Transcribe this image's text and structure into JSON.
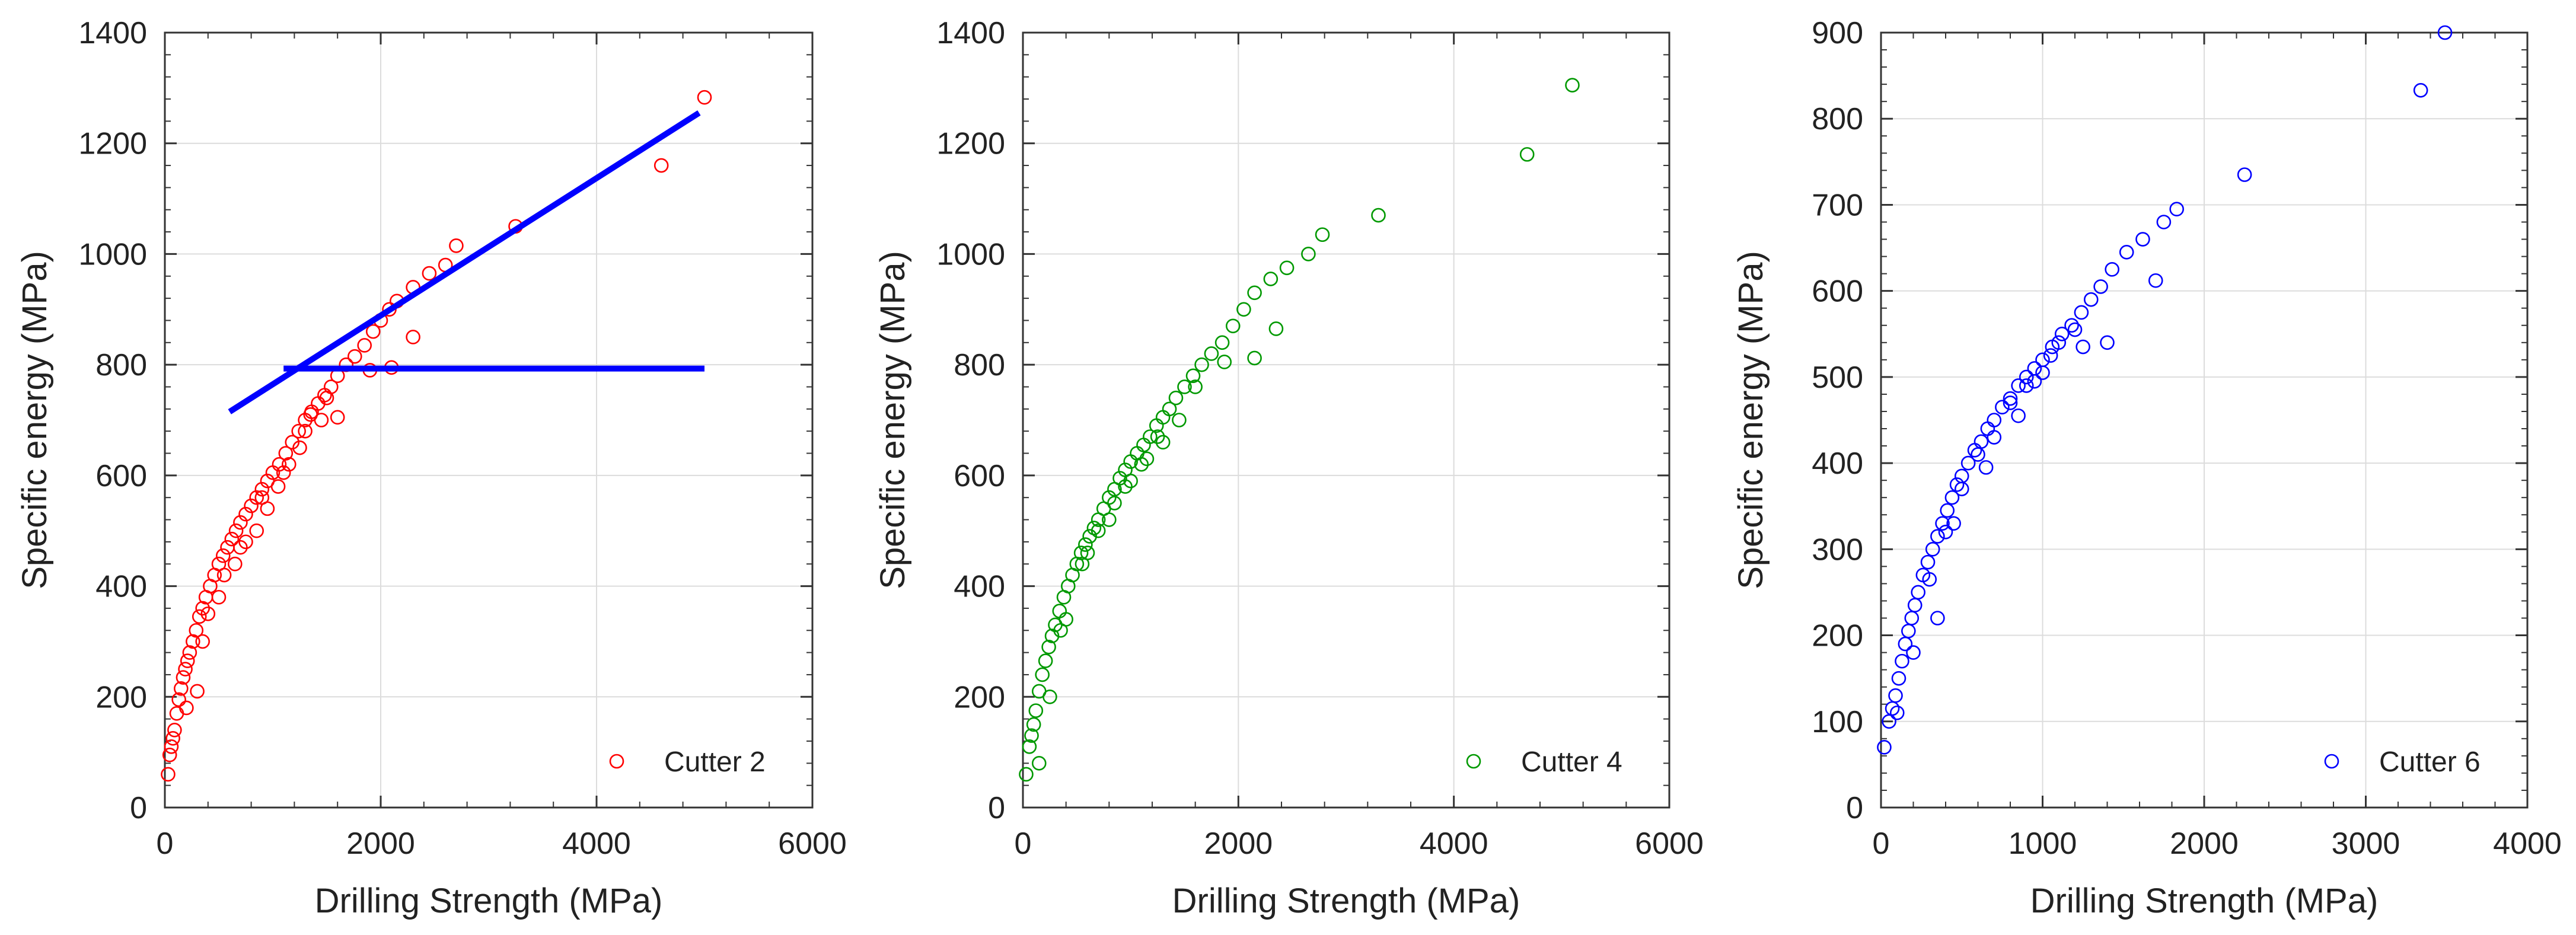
{
  "chart_data": [
    {
      "type": "scatter",
      "title": "",
      "xlabel": "Drilling Strength (MPa)",
      "ylabel": "Specific energy (MPa)",
      "xlim": [
        0,
        6000
      ],
      "ylim": [
        0,
        1400
      ],
      "xticks": [
        0,
        2000,
        4000,
        6000
      ],
      "yticks": [
        0,
        200,
        400,
        600,
        800,
        1000,
        1200,
        1400
      ],
      "grid": true,
      "legend_position": "bottom-right",
      "series": [
        {
          "name": "Cutter 2",
          "color": "#ff0000",
          "marker": "open-circle",
          "points": [
            [
              30,
              60
            ],
            [
              45,
              95
            ],
            [
              60,
              110
            ],
            [
              75,
              125
            ],
            [
              90,
              140
            ],
            [
              110,
              170
            ],
            [
              130,
              195
            ],
            [
              150,
              215
            ],
            [
              170,
              235
            ],
            [
              190,
              250
            ],
            [
              210,
              265
            ],
            [
              230,
              280
            ],
            [
              260,
              300
            ],
            [
              290,
              320
            ],
            [
              320,
              345
            ],
            [
              350,
              360
            ],
            [
              380,
              380
            ],
            [
              420,
              400
            ],
            [
              460,
              420
            ],
            [
              500,
              440
            ],
            [
              540,
              455
            ],
            [
              580,
              470
            ],
            [
              620,
              485
            ],
            [
              660,
              500
            ],
            [
              700,
              515
            ],
            [
              750,
              530
            ],
            [
              800,
              545
            ],
            [
              850,
              560
            ],
            [
              900,
              575
            ],
            [
              950,
              590
            ],
            [
              1000,
              605
            ],
            [
              1060,
              620
            ],
            [
              1120,
              640
            ],
            [
              1180,
              660
            ],
            [
              1240,
              680
            ],
            [
              1300,
              700
            ],
            [
              1360,
              715
            ],
            [
              1420,
              730
            ],
            [
              1480,
              745
            ],
            [
              1540,
              760
            ],
            [
              1600,
              780
            ],
            [
              1680,
              800
            ],
            [
              1760,
              815
            ],
            [
              1850,
              835
            ],
            [
              1930,
              860
            ],
            [
              2000,
              880
            ],
            [
              2080,
              900
            ],
            [
              2150,
              915
            ],
            [
              2300,
              940
            ],
            [
              2450,
              965
            ],
            [
              2600,
              980
            ],
            [
              2700,
              1015
            ],
            [
              3250,
              1050
            ],
            [
              4600,
              1160
            ],
            [
              5000,
              1283
            ],
            [
              1900,
              790
            ],
            [
              2100,
              795
            ],
            [
              2300,
              850
            ],
            [
              300,
              210
            ],
            [
              500,
              380
            ],
            [
              700,
              470
            ],
            [
              900,
              560
            ],
            [
              1100,
              605
            ],
            [
              1300,
              680
            ],
            [
              1500,
              740
            ],
            [
              1600,
              705
            ],
            [
              400,
              350
            ],
            [
              650,
              440
            ],
            [
              850,
              500
            ],
            [
              1050,
              580
            ],
            [
              1250,
              650
            ],
            [
              200,
              180
            ],
            [
              350,
              300
            ],
            [
              550,
              420
            ],
            [
              750,
              480
            ],
            [
              950,
              540
            ],
            [
              1150,
              620
            ],
            [
              1350,
              710
            ],
            [
              1450,
              700
            ]
          ]
        }
      ],
      "fit_lines": [
        {
          "name": "trend-line",
          "color": "#0000ff",
          "points": [
            [
              600,
              715
            ],
            [
              4950,
              1255
            ]
          ]
        },
        {
          "name": "threshold-line",
          "color": "#0000ff",
          "points": [
            [
              1100,
              793
            ],
            [
              5000,
              793
            ]
          ]
        }
      ]
    },
    {
      "type": "scatter",
      "title": "",
      "xlabel": "Drilling Strength (MPa)",
      "ylabel": "Specific energy (MPa)",
      "xlim": [
        0,
        6000
      ],
      "ylim": [
        0,
        1400
      ],
      "xticks": [
        0,
        2000,
        4000,
        6000
      ],
      "yticks": [
        0,
        200,
        400,
        600,
        800,
        1000,
        1200,
        1400
      ],
      "grid": true,
      "legend_position": "bottom-right",
      "series": [
        {
          "name": "Cutter 4",
          "color": "#009900",
          "marker": "open-circle",
          "points": [
            [
              30,
              60
            ],
            [
              60,
              110
            ],
            [
              80,
              130
            ],
            [
              100,
              150
            ],
            [
              120,
              175
            ],
            [
              150,
              210
            ],
            [
              180,
              240
            ],
            [
              210,
              265
            ],
            [
              240,
              290
            ],
            [
              270,
              310
            ],
            [
              300,
              330
            ],
            [
              340,
              355
            ],
            [
              380,
              380
            ],
            [
              420,
              400
            ],
            [
              460,
              420
            ],
            [
              500,
              440
            ],
            [
              540,
              460
            ],
            [
              580,
              475
            ],
            [
              620,
              490
            ],
            [
              660,
              505
            ],
            [
              700,
              520
            ],
            [
              750,
              540
            ],
            [
              800,
              560
            ],
            [
              850,
              575
            ],
            [
              900,
              595
            ],
            [
              950,
              610
            ],
            [
              1000,
              625
            ],
            [
              1060,
              640
            ],
            [
              1120,
              655
            ],
            [
              1180,
              670
            ],
            [
              1240,
              690
            ],
            [
              1300,
              705
            ],
            [
              1360,
              720
            ],
            [
              1420,
              740
            ],
            [
              1500,
              760
            ],
            [
              1580,
              780
            ],
            [
              1660,
              800
            ],
            [
              1750,
              820
            ],
            [
              1850,
              840
            ],
            [
              1950,
              870
            ],
            [
              2050,
              900
            ],
            [
              2150,
              930
            ],
            [
              2300,
              955
            ],
            [
              2450,
              975
            ],
            [
              2650,
              1000
            ],
            [
              2780,
              1035
            ],
            [
              3300,
              1070
            ],
            [
              4680,
              1180
            ],
            [
              5100,
              1305
            ],
            [
              1870,
              805
            ],
            [
              2150,
              812
            ],
            [
              2350,
              865
            ],
            [
              150,
              80
            ],
            [
              250,
              200
            ],
            [
              400,
              340
            ],
            [
              550,
              440
            ],
            [
              700,
              500
            ],
            [
              850,
              550
            ],
            [
              1000,
              590
            ],
            [
              1150,
              630
            ],
            [
              1300,
              660
            ],
            [
              1450,
              700
            ],
            [
              1600,
              760
            ],
            [
              350,
              320
            ],
            [
              600,
              460
            ],
            [
              800,
              520
            ],
            [
              950,
              580
            ],
            [
              1100,
              620
            ],
            [
              1250,
              670
            ]
          ]
        }
      ]
    },
    {
      "type": "scatter",
      "title": "",
      "xlabel": "Drilling Strength (MPa)",
      "ylabel": "Specific energy (MPa)",
      "xlim": [
        0,
        4000
      ],
      "ylim": [
        0,
        900
      ],
      "xticks": [
        0,
        1000,
        2000,
        3000,
        4000
      ],
      "yticks": [
        0,
        100,
        200,
        300,
        400,
        500,
        600,
        700,
        800,
        900
      ],
      "grid": true,
      "legend_position": "bottom-right",
      "series": [
        {
          "name": "Cutter 6",
          "color": "#0000ff",
          "marker": "open-circle",
          "points": [
            [
              20,
              70
            ],
            [
              50,
              100
            ],
            [
              70,
              115
            ],
            [
              90,
              130
            ],
            [
              110,
              150
            ],
            [
              130,
              170
            ],
            [
              150,
              190
            ],
            [
              170,
              205
            ],
            [
              190,
              220
            ],
            [
              210,
              235
            ],
            [
              230,
              250
            ],
            [
              260,
              270
            ],
            [
              290,
              285
            ],
            [
              320,
              300
            ],
            [
              350,
              315
            ],
            [
              380,
              330
            ],
            [
              410,
              345
            ],
            [
              440,
              360
            ],
            [
              470,
              375
            ],
            [
              500,
              385
            ],
            [
              540,
              400
            ],
            [
              580,
              415
            ],
            [
              620,
              425
            ],
            [
              660,
              440
            ],
            [
              700,
              450
            ],
            [
              750,
              465
            ],
            [
              800,
              475
            ],
            [
              850,
              490
            ],
            [
              900,
              500
            ],
            [
              950,
              510
            ],
            [
              1000,
              520
            ],
            [
              1060,
              535
            ],
            [
              1120,
              550
            ],
            [
              1180,
              560
            ],
            [
              1240,
              575
            ],
            [
              1300,
              590
            ],
            [
              1360,
              605
            ],
            [
              1430,
              625
            ],
            [
              1520,
              645
            ],
            [
              1620,
              660
            ],
            [
              1750,
              680
            ],
            [
              1830,
              695
            ],
            [
              2250,
              735
            ],
            [
              3340,
              833
            ],
            [
              3490,
              900
            ],
            [
              1400,
              540
            ],
            [
              1700,
              612
            ],
            [
              1250,
              535
            ],
            [
              100,
              110
            ],
            [
              200,
              180
            ],
            [
              300,
              265
            ],
            [
              400,
              320
            ],
            [
              500,
              370
            ],
            [
              600,
              410
            ],
            [
              700,
              430
            ],
            [
              800,
              470
            ],
            [
              900,
              490
            ],
            [
              1000,
              505
            ],
            [
              1100,
              540
            ],
            [
              1200,
              555
            ],
            [
              350,
              220
            ],
            [
              450,
              330
            ],
            [
              650,
              395
            ],
            [
              850,
              455
            ],
            [
              950,
              495
            ],
            [
              1050,
              525
            ]
          ]
        }
      ]
    }
  ]
}
